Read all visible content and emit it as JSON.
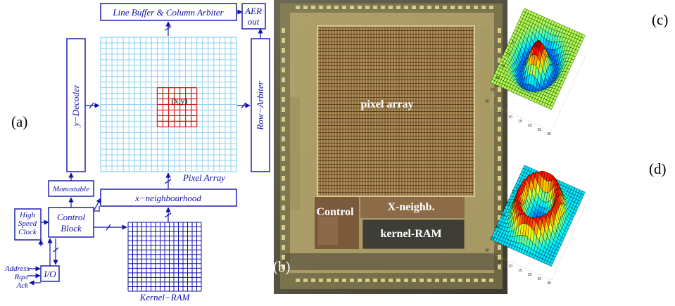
{
  "panel_labels": {
    "a": "(a)",
    "b": "(b)",
    "c": "(c)",
    "d": "(d)"
  },
  "diagram": {
    "line_buffer": "Line Buffer & Column Arbiter",
    "aer_out_1": "AER",
    "aer_out_2": "out",
    "y_decoder": "y−Decoder",
    "row_arbiter": "Row−Arbiter",
    "pixel_array": "Pixel Array",
    "xy": "(x,y)",
    "monostable": "Monostable",
    "x_neighbourhood": "x−neighbourhood",
    "clock_1": "High",
    "clock_2": "Speed",
    "clock_3": "Clock",
    "control_1": "Control",
    "control_2": "Block",
    "io": "I/O",
    "address": "Address",
    "rqst": "Rqst",
    "ack": "Ack",
    "kernel_ram": "Kernel−RAM"
  },
  "chip_photo": {
    "pixel_array": "pixel array",
    "control": "Control",
    "x_neighb": "X-neighb.",
    "kernel_ram": "kernel-RAM"
  },
  "plot_c": {
    "ticks_x": [
      "5",
      "10",
      "15",
      "20",
      "25",
      "30"
    ],
    "ticks_y": [
      "5",
      "10",
      "15",
      "20",
      "25",
      "30"
    ]
  },
  "plot_d": {
    "ticks_x": [
      "5",
      "10",
      "15",
      "20",
      "25",
      "30"
    ],
    "ticks_y": [
      "5",
      "10",
      "15",
      "20",
      "25",
      "30"
    ]
  },
  "colors": {
    "ink": "#1010a8",
    "grid": "#8fd0ee",
    "kernel_window": "#d01818"
  }
}
